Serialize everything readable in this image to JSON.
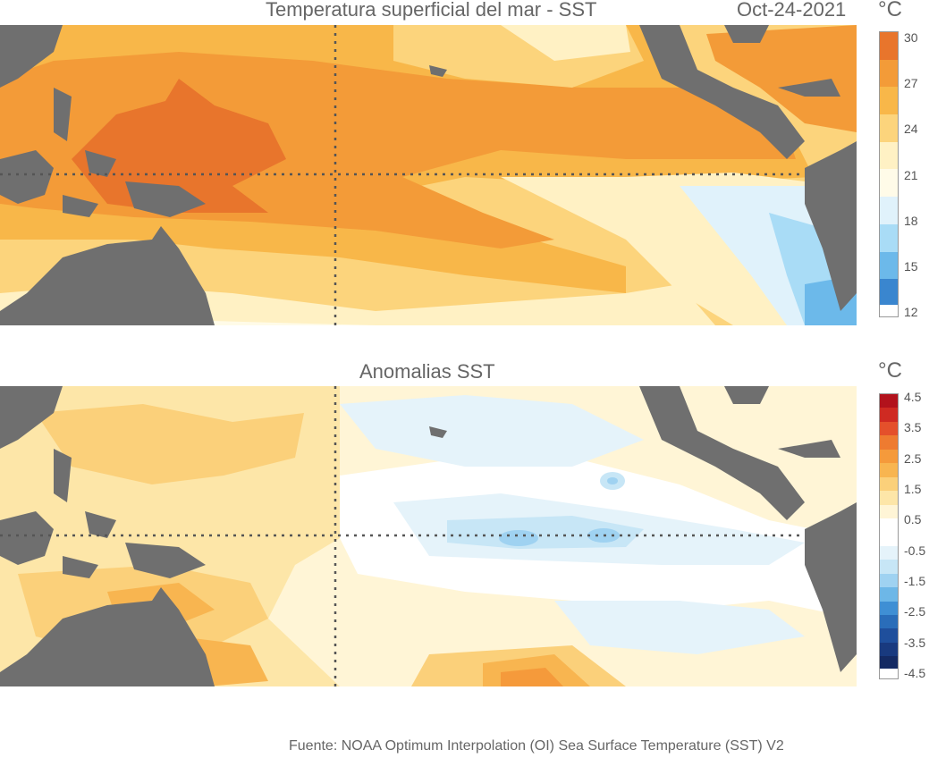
{
  "sst_panel": {
    "title": "Temperatura superficial del mar - SST",
    "date": "Oct-24-2021",
    "unit": "°C",
    "colorbar_ticks": [
      "30",
      "27",
      "24",
      "21",
      "18",
      "15",
      "12"
    ],
    "colorbar_colors": [
      "#e8752c",
      "#f39b38",
      "#f8b749",
      "#fcd47c",
      "#fff1c4",
      "#fffbe8",
      "#e0f2fb",
      "#a9dcf6",
      "#6cb9ea",
      "#3a86cf"
    ]
  },
  "anomaly_panel": {
    "title": "Anomalias SST",
    "unit": "°C",
    "colorbar_ticks": [
      "4.5",
      "3.5",
      "2.5",
      "1.5",
      "0.5",
      "-0.5",
      "-1.5",
      "-2.5",
      "-3.5",
      "-4.5"
    ],
    "colorbar_colors": [
      "#b2121c",
      "#cf2a22",
      "#e4502b",
      "#ee7b30",
      "#f59a3b",
      "#f8b550",
      "#fbd07a",
      "#fde6a8",
      "#fff5d6",
      "#ffffff",
      "#ffffff",
      "#e5f3fa",
      "#c7e6f6",
      "#9fd2f1",
      "#6db7e7",
      "#3f8fd4",
      "#2a6db9",
      "#1f4f9c",
      "#193a7f",
      "#142a63"
    ]
  },
  "source": "Fuente: NOAA Optimum Interpolation (OI) Sea Surface Temperature (SST) V2"
}
